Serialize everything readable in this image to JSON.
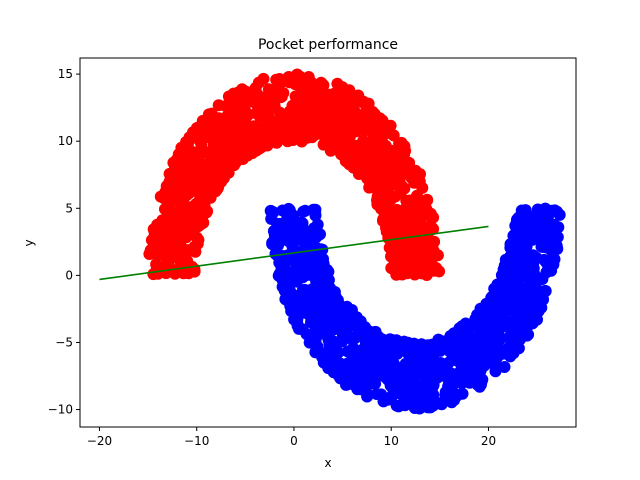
{
  "chart_data": {
    "type": "scatter",
    "title": "Pocket performance",
    "xlabel": "x",
    "ylabel": "y",
    "xlim": [
      -22,
      29
    ],
    "ylim": [
      -11.3,
      16.2
    ],
    "xticks": [
      -20,
      -10,
      0,
      10,
      20
    ],
    "yticks": [
      -10,
      -5,
      0,
      5,
      10,
      15
    ],
    "grid": false,
    "series": [
      {
        "kind": "half-moon scatter (upper)",
        "color": "#ff0000",
        "center": [
          0,
          0
        ],
        "radius_inner": 10,
        "radius_outer": 15,
        "angle_range_deg": [
          0,
          180
        ],
        "n_points": 1000
      },
      {
        "kind": "half-moon scatter (lower)",
        "color": "#0000ff",
        "center": [
          12.5,
          5
        ],
        "radius_inner": 10,
        "radius_outer": 15,
        "angle_range_deg": [
          180,
          360
        ],
        "n_points": 1000
      },
      {
        "kind": "line",
        "color": "#008000",
        "x": [
          -20,
          20
        ],
        "y": [
          -0.3,
          3.65
        ]
      }
    ]
  }
}
